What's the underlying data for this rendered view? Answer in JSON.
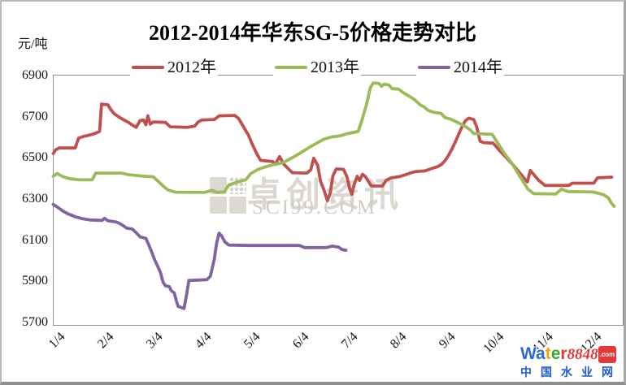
{
  "title": "2012-2014年华东SG-5价格走势对比",
  "y_axis_unit": "元/吨",
  "legend": [
    {
      "label": "2012年",
      "color": "#c0504d"
    },
    {
      "label": "2013年",
      "color": "#9bbb59"
    },
    {
      "label": "2014年",
      "color": "#8064a2"
    }
  ],
  "watermark": {
    "name": "卓创资讯",
    "site": "SCI99.COM"
  },
  "footer_logo": {
    "letters": [
      {
        "ch": "W",
        "color": "#2b6bd3"
      },
      {
        "ch": "a",
        "color": "#2b6bd3"
      },
      {
        "ch": "t",
        "color": "#f2a20d"
      },
      {
        "ch": "e",
        "color": "#3aa83a"
      },
      {
        "ch": "r",
        "color": "#e23a3a"
      }
    ],
    "number": "8848",
    "number_color": "#e23a3a",
    "tld": ".com",
    "tagline": "中国水业网"
  },
  "chart_data": {
    "type": "line",
    "title": "2012-2014年华东SG-5价格走势对比",
    "ylabel": "元/吨",
    "ylim": [
      5700,
      6900
    ],
    "y_ticks": [
      6900,
      6700,
      6500,
      6300,
      6100,
      5900,
      5700
    ],
    "x_tick_labels": [
      "1/4",
      "2/4",
      "3/4",
      "4/4",
      "5/4",
      "6/4",
      "7/4",
      "8/4",
      "9/4",
      "10/4",
      "11/4",
      "12/4"
    ],
    "x_unit": "month (x.0 = day 4 of month x)",
    "grid": false,
    "legend_position": "top",
    "series": [
      {
        "name": "2012年",
        "color": "#c0504d",
        "points": [
          [
            1.0,
            6525
          ],
          [
            1.05,
            6543
          ],
          [
            1.12,
            6552
          ],
          [
            1.45,
            6552
          ],
          [
            1.52,
            6600
          ],
          [
            1.62,
            6608
          ],
          [
            1.75,
            6615
          ],
          [
            1.85,
            6622
          ],
          [
            1.95,
            6632
          ],
          [
            1.99,
            6765
          ],
          [
            2.12,
            6762
          ],
          [
            2.18,
            6738
          ],
          [
            2.25,
            6718
          ],
          [
            2.35,
            6702
          ],
          [
            2.45,
            6688
          ],
          [
            2.55,
            6675
          ],
          [
            2.63,
            6662
          ],
          [
            2.7,
            6652
          ],
          [
            2.78,
            6685
          ],
          [
            2.85,
            6688
          ],
          [
            2.9,
            6665
          ],
          [
            2.94,
            6708
          ],
          [
            2.99,
            6668
          ],
          [
            3.05,
            6678
          ],
          [
            3.3,
            6676
          ],
          [
            3.4,
            6655
          ],
          [
            3.75,
            6652
          ],
          [
            3.9,
            6658
          ],
          [
            3.97,
            6678
          ],
          [
            4.05,
            6688
          ],
          [
            4.3,
            6690
          ],
          [
            4.4,
            6708
          ],
          [
            4.72,
            6710
          ],
          [
            4.8,
            6695
          ],
          [
            4.9,
            6655
          ],
          [
            5.0,
            6615
          ],
          [
            5.08,
            6570
          ],
          [
            5.17,
            6525
          ],
          [
            5.25,
            6492
          ],
          [
            5.5,
            6486
          ],
          [
            5.55,
            6472
          ],
          [
            5.64,
            6510
          ],
          [
            5.72,
            6475
          ],
          [
            5.8,
            6455
          ],
          [
            5.9,
            6432
          ],
          [
            6.2,
            6430
          ],
          [
            6.28,
            6446
          ],
          [
            6.34,
            6502
          ],
          [
            6.42,
            6468
          ],
          [
            6.48,
            6390
          ],
          [
            6.55,
            6348
          ],
          [
            6.62,
            6296
          ],
          [
            6.68,
            6335
          ],
          [
            6.73,
            6414
          ],
          [
            6.8,
            6450
          ],
          [
            6.95,
            6448
          ],
          [
            7.02,
            6412
          ],
          [
            7.08,
            6352
          ],
          [
            7.12,
            6327
          ],
          [
            7.17,
            6375
          ],
          [
            7.23,
            6414
          ],
          [
            7.28,
            6394
          ],
          [
            7.34,
            6424
          ],
          [
            7.4,
            6412
          ],
          [
            7.45,
            6394
          ],
          [
            7.52,
            6367
          ],
          [
            7.75,
            6367
          ],
          [
            7.82,
            6394
          ],
          [
            7.92,
            6406
          ],
          [
            8.1,
            6413
          ],
          [
            8.4,
            6436
          ],
          [
            8.62,
            6441
          ],
          [
            8.76,
            6452
          ],
          [
            8.88,
            6461
          ],
          [
            8.96,
            6472
          ],
          [
            9.03,
            6490
          ],
          [
            9.1,
            6515
          ],
          [
            9.17,
            6545
          ],
          [
            9.24,
            6580
          ],
          [
            9.31,
            6618
          ],
          [
            9.38,
            6655
          ],
          [
            9.45,
            6685
          ],
          [
            9.52,
            6697
          ],
          [
            9.62,
            6690
          ],
          [
            9.68,
            6655
          ],
          [
            9.75,
            6585
          ],
          [
            9.82,
            6578
          ],
          [
            10.02,
            6575
          ],
          [
            10.14,
            6542
          ],
          [
            10.28,
            6507
          ],
          [
            10.45,
            6463
          ],
          [
            10.62,
            6415
          ],
          [
            10.72,
            6387
          ],
          [
            10.78,
            6443
          ],
          [
            10.86,
            6420
          ],
          [
            10.95,
            6395
          ],
          [
            11.08,
            6370
          ],
          [
            11.57,
            6370
          ],
          [
            11.64,
            6381
          ],
          [
            12.08,
            6381
          ],
          [
            12.16,
            6407
          ],
          [
            12.45,
            6410
          ]
        ]
      },
      {
        "name": "2013年",
        "color": "#9bbb59",
        "points": [
          [
            1.0,
            6415
          ],
          [
            1.08,
            6428
          ],
          [
            1.2,
            6412
          ],
          [
            1.35,
            6402
          ],
          [
            1.55,
            6397
          ],
          [
            1.8,
            6397
          ],
          [
            1.87,
            6430
          ],
          [
            2.4,
            6430
          ],
          [
            2.55,
            6422
          ],
          [
            2.85,
            6415
          ],
          [
            3.05,
            6412
          ],
          [
            3.15,
            6390
          ],
          [
            3.25,
            6368
          ],
          [
            3.35,
            6348
          ],
          [
            3.5,
            6337
          ],
          [
            4.1,
            6336
          ],
          [
            4.25,
            6346
          ],
          [
            4.35,
            6336
          ],
          [
            4.5,
            6338
          ],
          [
            4.6,
            6372
          ],
          [
            4.75,
            6385
          ],
          [
            4.95,
            6398
          ],
          [
            5.05,
            6428
          ],
          [
            5.2,
            6448
          ],
          [
            5.35,
            6460
          ],
          [
            5.5,
            6470
          ],
          [
            5.7,
            6480
          ],
          [
            5.85,
            6498
          ],
          [
            6.0,
            6518
          ],
          [
            6.15,
            6540
          ],
          [
            6.3,
            6562
          ],
          [
            6.45,
            6582
          ],
          [
            6.55,
            6595
          ],
          [
            6.7,
            6605
          ],
          [
            6.9,
            6612
          ],
          [
            7.0,
            6620
          ],
          [
            7.25,
            6632
          ],
          [
            7.32,
            6680
          ],
          [
            7.42,
            6762
          ],
          [
            7.5,
            6845
          ],
          [
            7.56,
            6868
          ],
          [
            7.68,
            6865
          ],
          [
            7.73,
            6852
          ],
          [
            7.78,
            6862
          ],
          [
            7.88,
            6858
          ],
          [
            7.95,
            6840
          ],
          [
            8.08,
            6838
          ],
          [
            8.18,
            6820
          ],
          [
            8.28,
            6806
          ],
          [
            8.4,
            6788
          ],
          [
            8.52,
            6762
          ],
          [
            8.6,
            6752
          ],
          [
            8.68,
            6735
          ],
          [
            8.8,
            6725
          ],
          [
            8.95,
            6720
          ],
          [
            9.03,
            6700
          ],
          [
            9.15,
            6692
          ],
          [
            9.3,
            6675
          ],
          [
            9.45,
            6656
          ],
          [
            9.55,
            6640
          ],
          [
            9.62,
            6622
          ],
          [
            10.0,
            6618
          ],
          [
            10.1,
            6580
          ],
          [
            10.25,
            6525
          ],
          [
            10.4,
            6478
          ],
          [
            10.52,
            6432
          ],
          [
            10.63,
            6390
          ],
          [
            10.73,
            6352
          ],
          [
            10.85,
            6330
          ],
          [
            11.3,
            6328
          ],
          [
            11.42,
            6352
          ],
          [
            11.55,
            6340
          ],
          [
            12.08,
            6338
          ],
          [
            12.28,
            6325
          ],
          [
            12.38,
            6310
          ],
          [
            12.44,
            6285
          ],
          [
            12.5,
            6268
          ]
        ]
      },
      {
        "name": "2014年",
        "color": "#8064a2",
        "points": [
          [
            1.0,
            6278
          ],
          [
            1.1,
            6262
          ],
          [
            1.2,
            6245
          ],
          [
            1.3,
            6232
          ],
          [
            1.45,
            6218
          ],
          [
            1.6,
            6208
          ],
          [
            1.75,
            6202
          ],
          [
            2.0,
            6200
          ],
          [
            2.05,
            6210
          ],
          [
            2.12,
            6198
          ],
          [
            2.3,
            6192
          ],
          [
            2.4,
            6180
          ],
          [
            2.5,
            6163
          ],
          [
            2.62,
            6158
          ],
          [
            2.7,
            6140
          ],
          [
            2.78,
            6120
          ],
          [
            2.9,
            6112
          ],
          [
            2.96,
            6080
          ],
          [
            3.02,
            6045
          ],
          [
            3.08,
            6008
          ],
          [
            3.15,
            5972
          ],
          [
            3.2,
            5945
          ],
          [
            3.25,
            5900
          ],
          [
            3.3,
            5882
          ],
          [
            3.38,
            5878
          ],
          [
            3.42,
            5858
          ],
          [
            3.48,
            5848
          ],
          [
            3.52,
            5812
          ],
          [
            3.56,
            5782
          ],
          [
            3.68,
            5772
          ],
          [
            3.74,
            5848
          ],
          [
            3.78,
            5908
          ],
          [
            4.15,
            5912
          ],
          [
            4.22,
            5928
          ],
          [
            4.3,
            6010
          ],
          [
            4.35,
            6090
          ],
          [
            4.4,
            6138
          ],
          [
            4.45,
            6125
          ],
          [
            4.52,
            6095
          ],
          [
            4.6,
            6080
          ],
          [
            5.0,
            6078
          ],
          [
            6.05,
            6078
          ],
          [
            6.15,
            6068
          ],
          [
            6.6,
            6068
          ],
          [
            6.72,
            6075
          ],
          [
            6.85,
            6070
          ],
          [
            6.92,
            6058
          ],
          [
            7.0,
            6055
          ]
        ]
      }
    ]
  }
}
